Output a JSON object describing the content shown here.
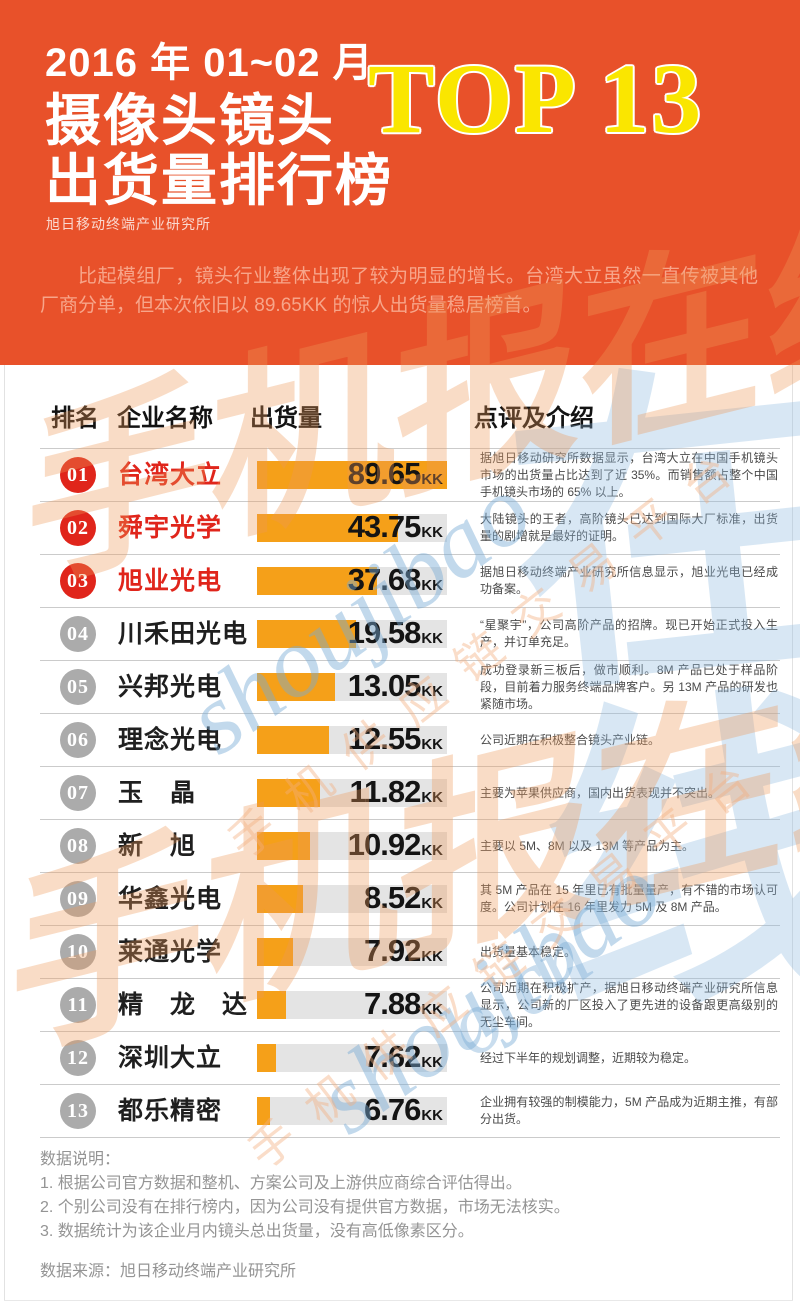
{
  "banner": {
    "date_line": "2016 年 01~02 月",
    "title_line1": "摄像头镜头",
    "title_line2": "出货量排行榜",
    "top_label": "TOP 13",
    "org": "旭日移动终端产业研究所",
    "intro": "比起模组厂，镜头行业整体出现了较为明显的增长。台湾大立虽然一直传被其他厂商分单，但本次依旧以 89.65KK 的惊人出货量稳居榜首。"
  },
  "table_headers": {
    "rank": "排名",
    "company": "企业名称",
    "shipment": "出货量",
    "comment": "点评及介绍"
  },
  "chart_data": {
    "type": "bar",
    "title": "2016年01~02月摄像头镜头出货量排行榜 TOP 13",
    "unit": "KK",
    "legend": "none",
    "orientation": "horizontal",
    "categories": [
      "台湾大立",
      "舜宇光学",
      "旭业光电",
      "川禾田光电",
      "兴邦光电",
      "理念光电",
      "玉晶",
      "新旭",
      "华鑫光电",
      "莱通光学",
      "精龙达",
      "深圳大立",
      "都乐精密"
    ],
    "values": [
      89.65,
      43.75,
      37.68,
      19.58,
      13.05,
      12.55,
      11.82,
      10.92,
      8.52,
      7.92,
      7.88,
      7.62,
      6.76
    ],
    "bar_percent": [
      100,
      74,
      63,
      52,
      41,
      38,
      33,
      28,
      24,
      19,
      15,
      10,
      7
    ],
    "rows": [
      {
        "rank": "01",
        "company": "台湾大立",
        "value": "89.65",
        "unit": "KK",
        "bar_percent": 100,
        "badge": "red",
        "comment": "据旭日移动研究所数据显示，台湾大立在中国手机镜头市场的出货量占比达到了近 35%。而销售额占整个中国手机镜头市场的 65% 以上。"
      },
      {
        "rank": "02",
        "company": "舜宇光学",
        "value": "43.75",
        "unit": "KK",
        "bar_percent": 74,
        "badge": "red",
        "comment": "大陆镜头的王者，高阶镜头已达到国际大厂标准，出货量的剧增就是最好的证明。"
      },
      {
        "rank": "03",
        "company": "旭业光电",
        "value": "37.68",
        "unit": "KK",
        "bar_percent": 63,
        "badge": "red",
        "comment": "据旭日移动终端产业研究所信息显示，旭业光电已经成功备案。"
      },
      {
        "rank": "04",
        "company": "川禾田光电",
        "value": "19.58",
        "unit": "KK",
        "bar_percent": 52,
        "badge": "gray",
        "comment": "“星聚宇”，公司高阶产品的招牌。现已开始正式投入生产，并订单充足。"
      },
      {
        "rank": "05",
        "company": "兴邦光电",
        "value": "13.05",
        "unit": "KK",
        "bar_percent": 41,
        "badge": "gray",
        "comment": "成功登录新三板后，做市顺利。8M 产品已处于样品阶段，目前着力服务终端品牌客户。另 13M 产品的研发也紧随市场。"
      },
      {
        "rank": "06",
        "company": "理念光电",
        "value": "12.55",
        "unit": "KK",
        "bar_percent": 38,
        "badge": "gray",
        "comment": "公司近期在积极整合镜头产业链。"
      },
      {
        "rank": "07",
        "company": "玉　晶",
        "value": "11.82",
        "unit": "KK",
        "bar_percent": 33,
        "badge": "gray",
        "comment": "主要为苹果供应商，国内出货表现并不突出。"
      },
      {
        "rank": "08",
        "company": "新　旭",
        "value": "10.92",
        "unit": "KK",
        "bar_percent": 28,
        "badge": "gray",
        "comment": "主要以 5M、8M 以及 13M 等产品为主。"
      },
      {
        "rank": "09",
        "company": "华鑫光电",
        "value": "8.52",
        "unit": "KK",
        "bar_percent": 24,
        "badge": "gray",
        "comment": "其 5M 产品在 15 年里已有批量量产，有不错的市场认可度。公司计划在 16 年里发力 5M 及 8M 产品。"
      },
      {
        "rank": "10",
        "company": "莱通光学",
        "value": "7.92",
        "unit": "KK",
        "bar_percent": 19,
        "badge": "gray",
        "comment": "出货量基本稳定。"
      },
      {
        "rank": "11",
        "company": "精　龙　达",
        "value": "7.88",
        "unit": "KK",
        "bar_percent": 15,
        "badge": "gray",
        "comment": "公司近期在积极扩产，据旭日移动终端产业研究所信息显示，公司新的厂区投入了更先进的设备跟更高级别的无尘车间。"
      },
      {
        "rank": "12",
        "company": "深圳大立",
        "value": "7.62",
        "unit": "KK",
        "bar_percent": 10,
        "badge": "gray",
        "comment": "经过下半年的规划调整，近期较为稳定。"
      },
      {
        "rank": "13",
        "company": "都乐精密",
        "value": "6.76",
        "unit": "KK",
        "bar_percent": 7,
        "badge": "gray",
        "comment": "企业拥有较强的制模能力，5M 产品成为近期主推，有部分出货。"
      }
    ]
  },
  "footer": {
    "note_title": "数据说明：",
    "notes": [
      "1. 根据公司官方数据和整机、方案公司及上游供应商综合评估得出。",
      "2. 个别公司没有在排行榜内，因为公司没有提供官方数据，市场无法核实。",
      "3. 数据统计为该企业月内镜头总出货量，没有高低像素区分。"
    ],
    "source": "数据来源：旭日移动终端产业研究所"
  },
  "watermarks": {
    "big_blue": "在线",
    "script_cn": "手机报在线",
    "latin": "shoujibao",
    "latin_suffix": "o.cn",
    "supply": "手机供应链交易平台"
  },
  "colors": {
    "banner_bg": "#E8512A",
    "top13_yellow": "#FAE600",
    "intro_text": "#F7A58A",
    "rank_red": "#E0251B",
    "rank_gray": "#ABABAB",
    "bar_orange": "#F5A019",
    "bar_track": "#E4E4E4",
    "comment_text": "#4A4A4A",
    "footer_text": "#949494"
  }
}
